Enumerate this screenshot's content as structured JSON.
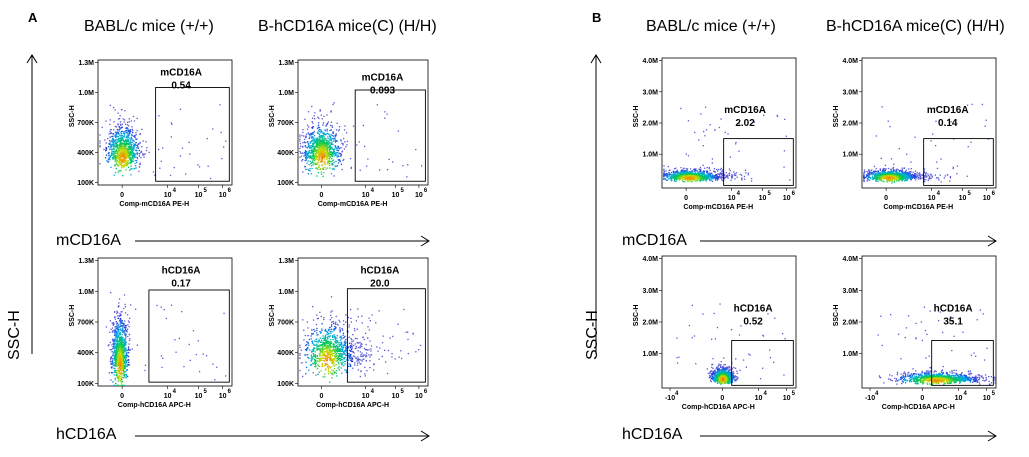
{
  "panels": [
    {
      "letter": "A",
      "headers": [
        "BABL/c mice (+/+)",
        "B-hCD16A mice(C) (H/H)"
      ],
      "row_arrow_labels": [
        "mCD16A",
        "hCD16A"
      ],
      "y_arrow_label": "SSC-H"
    },
    {
      "letter": "B",
      "headers": [
        "BABL/c mice (+/+)",
        "B-hCD16A mice(C) (H/H)"
      ],
      "row_arrow_labels": [
        "mCD16A",
        "hCD16A"
      ],
      "y_arrow_label": "SSC-H"
    }
  ],
  "chart_data": [
    {
      "type": "scatter",
      "panel": "A",
      "strain": "BABL/c mice (+/+)",
      "gate_label": "mCD16A",
      "gate_percent": 0.54,
      "xlabel": "Comp-mCD16A PE-H",
      "ylabel": "SSC-H",
      "yticks": [
        "1.3M",
        "1.0M",
        "700K",
        "400K",
        "100K"
      ],
      "xticks": [
        "0",
        "10",
        "10",
        "10"
      ],
      "xtick_exponents": [
        "",
        "4",
        "5",
        "6"
      ],
      "population": {
        "x_center": 0.18,
        "y_center": 0.78,
        "spread_x": 0.06,
        "spread_y": 0.12,
        "shape": "compact"
      }
    },
    {
      "type": "scatter",
      "panel": "A",
      "strain": "B-hCD16A mice(C) (H/H)",
      "gate_label": "mCD16A",
      "gate_percent": 0.093,
      "xlabel": "Comp-mCD16A PE-H",
      "ylabel": "SSC-H",
      "yticks": [
        "1.3M",
        "1.0M",
        "700K",
        "400K",
        "100K"
      ],
      "xticks": [
        "0",
        "10",
        "10",
        "10"
      ],
      "xtick_exponents": [
        "",
        "4",
        "5",
        "6"
      ],
      "population": {
        "x_center": 0.18,
        "y_center": 0.78,
        "spread_x": 0.07,
        "spread_y": 0.13,
        "shape": "compact"
      }
    },
    {
      "type": "scatter",
      "panel": "A",
      "strain": "BABL/c mice (+/+)",
      "gate_label": "hCD16A",
      "gate_percent": 0.17,
      "xlabel": "Comp-hCD16A APC-H",
      "ylabel": "SSC-H",
      "yticks": [
        "1.3M",
        "1.0M",
        "700K",
        "400K",
        "100K"
      ],
      "xticks": [
        "0",
        "10",
        "10",
        "10"
      ],
      "xtick_exponents": [
        "",
        "4",
        "5",
        "6"
      ],
      "population": {
        "x_center": 0.16,
        "y_center": 0.84,
        "spread_x": 0.03,
        "spread_y": 0.18,
        "shape": "vertical"
      }
    },
    {
      "type": "scatter",
      "panel": "A",
      "strain": "B-hCD16A mice(C) (H/H)",
      "gate_label": "hCD16A",
      "gate_percent": 20.0,
      "xlabel": "Comp-hCD16A APC-H",
      "ylabel": "SSC-H",
      "yticks": [
        "1.3M",
        "1.0M",
        "700K",
        "400K",
        "100K"
      ],
      "xticks": [
        "0",
        "10",
        "10",
        "10"
      ],
      "xtick_exponents": [
        "",
        "4",
        "5",
        "6"
      ],
      "population": {
        "x_center": 0.22,
        "y_center": 0.8,
        "spread_x": 0.09,
        "spread_y": 0.14,
        "shape": "wide"
      }
    },
    {
      "type": "scatter",
      "panel": "B",
      "strain": "BABL/c mice (+/+)",
      "gate_label": "mCD16A",
      "gate_percent": 2.02,
      "xlabel": "Comp-mCD16A PE-H",
      "ylabel": "SSC-H",
      "yticks": [
        "4.0M",
        "3.0M",
        "2.0M",
        "1.0M"
      ],
      "xticks": [
        "0",
        "10",
        "10",
        "10"
      ],
      "xtick_exponents": [
        "",
        "4",
        "5",
        "6"
      ],
      "population": {
        "x_center": 0.2,
        "y_center": 0.92,
        "spread_x": 0.1,
        "spread_y": 0.03,
        "shape": "flat"
      }
    },
    {
      "type": "scatter",
      "panel": "B",
      "strain": "B-hCD16A mice(C) (H/H)",
      "gate_label": "mCD16A",
      "gate_percent": 0.14,
      "xlabel": "Comp-mCD16A PE-H",
      "ylabel": "SSC-H",
      "yticks": [
        "4.0M",
        "3.0M",
        "2.0M",
        "1.0M"
      ],
      "xticks": [
        "0",
        "10",
        "10",
        "10"
      ],
      "xtick_exponents": [
        "",
        "4",
        "5",
        "6"
      ],
      "population": {
        "x_center": 0.2,
        "y_center": 0.92,
        "spread_x": 0.09,
        "spread_y": 0.03,
        "shape": "flat"
      }
    },
    {
      "type": "scatter",
      "panel": "B",
      "strain": "BABL/c mice (+/+)",
      "gate_label": "hCD16A",
      "gate_percent": 0.52,
      "xlabel": "Comp-hCD16A APC-H",
      "ylabel": "SSC-H",
      "yticks": [
        "4.0M",
        "3.0M",
        "2.0M",
        "1.0M"
      ],
      "xticks": [
        "-10",
        "0",
        "10",
        "10"
      ],
      "xtick_exponents": [
        "4",
        "",
        "4",
        "5"
      ],
      "population": {
        "x_center": 0.45,
        "y_center": 0.93,
        "spread_x": 0.04,
        "spread_y": 0.04,
        "shape": "blob"
      }
    },
    {
      "type": "scatter",
      "panel": "B",
      "strain": "B-hCD16A mice(C) (H/H)",
      "gate_label": "hCD16A",
      "gate_percent": 35.1,
      "xlabel": "Comp-hCD16A APC-H",
      "ylabel": "SSC-H",
      "yticks": [
        "4.0M",
        "3.0M",
        "2.0M",
        "1.0M"
      ],
      "xticks": [
        "-10",
        "0",
        "10",
        "10"
      ],
      "xtick_exponents": [
        "4",
        "",
        "4",
        "5"
      ],
      "population": {
        "x_center": 0.55,
        "y_center": 0.94,
        "spread_x": 0.14,
        "spread_y": 0.03,
        "shape": "flat"
      }
    }
  ]
}
